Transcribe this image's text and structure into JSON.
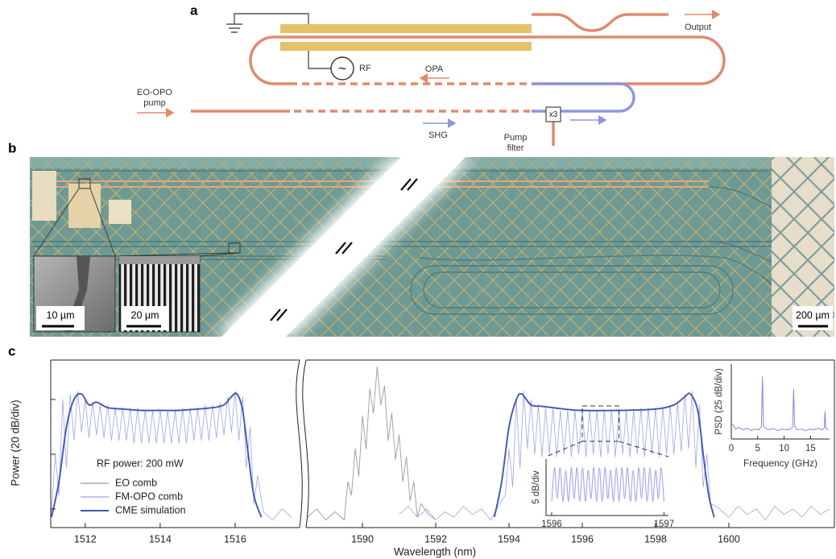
{
  "figure": {
    "panel_a": {
      "label": "a",
      "output": "Output",
      "rf": "RF",
      "rf_source_symbol": "~",
      "opa": "OPA",
      "pump": [
        "EO-OPO",
        "pump"
      ],
      "shg": "SHG",
      "pump_filter": [
        "Pump",
        "filter"
      ],
      "tripler": "x3"
    },
    "panel_b": {
      "label": "b",
      "scale_bars": [
        "10 µm",
        "20 µm",
        "200 µm"
      ]
    },
    "panel_c": {
      "label": "c"
    }
  },
  "chart_data": {
    "type": "line",
    "xlabel": "Wavelength (nm)",
    "ylabel": "Power (20 dB/div)",
    "annotation": "RF power: 200 mW",
    "xlim": [
      1511.08,
      1602.88
    ],
    "x_break": [
      1517.72,
      1588.46
    ],
    "xticks": [
      1512,
      1514,
      1516,
      1590,
      1592,
      1594,
      1596,
      1598,
      1600
    ],
    "ylim": [
      -6.8,
      54.4
    ],
    "yticks": [
      0,
      20,
      40
    ],
    "legend": "lower left",
    "series": [
      {
        "name": "EO comb",
        "color": "#9b9b9b",
        "x": [
          1588.5,
          1588.75,
          1589,
          1589.25,
          1589.5,
          1589.6,
          1589.7,
          1589.8,
          1589.9,
          1590,
          1590.1,
          1590.2,
          1590.3,
          1590.4,
          1590.5,
          1590.6,
          1590.7,
          1590.8,
          1590.9,
          1591,
          1591.1,
          1591.2,
          1591.3,
          1591.4,
          1591.5,
          1591.6,
          1591.8,
          1592
        ],
        "values": [
          -3,
          0,
          -4,
          -1,
          -4,
          10,
          5,
          22,
          12,
          34,
          22,
          44,
          35,
          52,
          38,
          45,
          25,
          35,
          18,
          27,
          10,
          19,
          3,
          10,
          -3,
          2,
          -2,
          -4
        ]
      },
      {
        "name": "FM-OPO comb",
        "color": "#9ea4ea",
        "x": [
          1511.1,
          1511.2,
          1511.3,
          1511.4,
          1511.5,
          1511.6,
          1511.7,
          1511.8,
          1511.9,
          1512,
          1512.1,
          1512.2,
          1512.3,
          1512.4,
          1512.5,
          1512.6,
          1512.7,
          1512.8,
          1512.9,
          1513,
          1513.1,
          1513.2,
          1513.3,
          1513.4,
          1513.5,
          1513.6,
          1513.7,
          1513.8,
          1513.9,
          1514,
          1514.1,
          1514.2,
          1514.3,
          1514.4,
          1514.5,
          1514.6,
          1514.7,
          1514.8,
          1514.9,
          1515,
          1515.1,
          1515.2,
          1515.3,
          1515.4,
          1515.5,
          1515.6,
          1515.7,
          1515.8,
          1515.9,
          1516,
          1516.1,
          1516.2,
          1516.3,
          1516.4,
          1516.5,
          1516.6,
          1516.75,
          1517,
          1517.25,
          1517.5,
          1591,
          1591.25,
          1591.5,
          1591.75,
          1592,
          1592.25,
          1592.5,
          1592.75,
          1593,
          1593.25,
          1593.5,
          1593.75,
          1593.9,
          1594,
          1594.1,
          1594.2,
          1594.3,
          1594.4,
          1594.5,
          1594.6,
          1594.7,
          1594.8,
          1594.9,
          1595,
          1595.1,
          1595.2,
          1595.3,
          1595.4,
          1595.5,
          1595.6,
          1595.7,
          1595.8,
          1595.9,
          1596,
          1596.1,
          1596.2,
          1596.3,
          1596.4,
          1596.5,
          1596.6,
          1596.7,
          1596.8,
          1596.9,
          1597,
          1597.1,
          1597.2,
          1597.3,
          1597.4,
          1597.5,
          1597.6,
          1597.7,
          1597.8,
          1597.9,
          1598,
          1598.1,
          1598.2,
          1598.3,
          1598.4,
          1598.5,
          1598.6,
          1598.7,
          1598.8,
          1598.9,
          1599,
          1599.1,
          1599.2,
          1599.3,
          1599.4,
          1599.5,
          1599.75,
          1600,
          1600.25,
          1600.5,
          1600.75,
          1601,
          1601.25,
          1601.5,
          1601.75,
          1602,
          1602.25,
          1602.5,
          1602.75
        ],
        "values": [
          -2,
          20,
          5,
          40,
          15,
          42,
          25,
          43,
          28,
          40,
          26,
          39,
          27,
          38,
          26,
          38,
          25,
          37,
          25,
          37,
          25,
          37,
          24,
          37,
          24,
          36,
          24,
          36,
          24,
          36,
          24,
          36,
          24,
          36,
          24,
          37,
          24,
          37,
          25,
          37,
          25,
          38,
          25,
          38,
          26,
          39,
          27,
          41,
          28,
          43,
          25,
          41,
          15,
          30,
          2,
          12,
          -1,
          -4,
          0,
          -3,
          -2,
          1,
          -3,
          0,
          -4,
          -1,
          -3,
          1,
          -2,
          0,
          -4,
          2,
          5,
          22,
          8,
          40,
          15,
          43,
          22,
          40,
          20,
          38,
          19,
          37,
          20,
          37,
          19,
          36,
          20,
          36,
          19,
          36,
          20,
          36,
          19,
          36,
          20,
          36,
          19,
          36,
          20,
          36,
          19,
          36,
          20,
          36,
          19,
          36,
          20,
          37,
          19,
          37,
          20,
          37,
          19,
          37,
          20,
          38,
          20,
          39,
          21,
          42,
          22,
          43,
          15,
          38,
          8,
          20,
          2,
          0,
          -3,
          1,
          -2,
          0,
          -4,
          1,
          -2,
          0,
          -3,
          1,
          -2,
          0
        ]
      },
      {
        "name": "CME simulation",
        "color": "#3f57b5",
        "x": [
          1511.1,
          1511.3,
          1511.5,
          1511.7,
          1511.9,
          1512.1,
          1512.3,
          1512.6,
          1513,
          1513.5,
          1514,
          1514.5,
          1515,
          1515.4,
          1515.7,
          1515.9,
          1516.05,
          1516.2,
          1516.35,
          1516.5,
          1516.7,
          1593.6,
          1593.8,
          1594,
          1594.2,
          1594.35,
          1594.6,
          1594.9,
          1595.5,
          1596,
          1597,
          1598,
          1598.5,
          1598.8,
          1598.95,
          1599.15,
          1599.3,
          1599.45,
          1599.6
        ],
        "values": [
          -3,
          10,
          30,
          40,
          42,
          38,
          39,
          37,
          36.5,
          36,
          36,
          36,
          36.5,
          37,
          38,
          41,
          42,
          36,
          20,
          5,
          -3,
          -3,
          10,
          30,
          40,
          42,
          38,
          37.5,
          36.5,
          36,
          36,
          36.5,
          38,
          41,
          42,
          36,
          20,
          5,
          -3
        ]
      }
    ],
    "insets": [
      {
        "type": "line",
        "ylabel": "PSD (25 dB/div)",
        "xlabel": "Frequency (GHz)",
        "xlim": [
          0,
          18.6
        ],
        "xticks": [
          0,
          5,
          10,
          15
        ],
        "ylim": [
          -10,
          80
        ],
        "series": [
          {
            "color": "#7f89dc",
            "x": [
              0.2,
              0.8,
              1.5,
              2.2,
              3,
              3.8,
              4.5,
              5.2,
              5.7,
              5.9,
              6.1,
              6.6,
              7.3,
              8,
              8.8,
              9.6,
              10.4,
              11.2,
              11.6,
              11.8,
              12,
              12.5,
              13.3,
              14,
              14.8,
              15.6,
              16.4,
              17.2,
              17.6,
              17.75,
              17.9,
              18.4
            ],
            "values": [
              8,
              2,
              4,
              1,
              3,
              0,
              2,
              1,
              5,
              65,
              6,
              2,
              1,
              3,
              0,
              2,
              1,
              2,
              4,
              50,
              5,
              1,
              2,
              0,
              2,
              1,
              3,
              1,
              3,
              23,
              3,
              1
            ]
          }
        ]
      },
      {
        "type": "line",
        "ylabel": "5 dB/div",
        "xlim": [
          1595.95,
          1597.04
        ],
        "xticks": [
          1596,
          1597
        ],
        "ylim": [
          20,
          40
        ],
        "series": [
          {
            "color": "#9ea4ea",
            "x": [
              1596,
              1596.025,
              1596.05,
              1596.075,
              1596.1,
              1596.125,
              1596.15,
              1596.175,
              1596.2,
              1596.225,
              1596.25,
              1596.275,
              1596.3,
              1596.325,
              1596.35,
              1596.375,
              1596.4,
              1596.425,
              1596.45,
              1596.475,
              1596.5,
              1596.525,
              1596.55,
              1596.575,
              1596.6,
              1596.625,
              1596.65,
              1596.675,
              1596.7,
              1596.725,
              1596.75,
              1596.775,
              1596.8,
              1596.825,
              1596.85,
              1596.875,
              1596.9,
              1596.925,
              1596.95,
              1596.975,
              1597
            ],
            "values": [
              25,
              37,
              26,
              37,
              25,
              36,
              25,
              37,
              26,
              37,
              25,
              37,
              25,
              36,
              26,
              37,
              25,
              37,
              25,
              37,
              26,
              36,
              25,
              37,
              25,
              37,
              26,
              37,
              25,
              36,
              25,
              37,
              26,
              37,
              25,
              37,
              25,
              36,
              26,
              37,
              25
            ]
          }
        ]
      }
    ]
  }
}
